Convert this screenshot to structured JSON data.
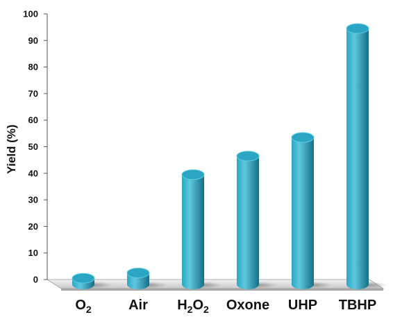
{
  "chart_data": {
    "type": "bar",
    "style": "3d-cylinder",
    "categories": [
      "O2",
      "Air",
      "H2O2",
      "Oxone",
      "UHP",
      "TBHP"
    ],
    "category_labels": [
      {
        "main": "O",
        "sub": "2",
        "tail": ""
      },
      {
        "main": "Air",
        "sub": "",
        "tail": ""
      },
      {
        "main": "H",
        "sub": "2",
        "tail": "O",
        "sub2": "2"
      },
      {
        "main": "Oxone",
        "sub": "",
        "tail": ""
      },
      {
        "main": "UHP",
        "sub": "",
        "tail": ""
      },
      {
        "main": "TBHP",
        "sub": "",
        "tail": ""
      }
    ],
    "values": [
      1,
      3,
      40,
      47,
      54,
      95
    ],
    "title": "",
    "xlabel": "",
    "ylabel": "Yield (%)",
    "ylim": [
      0,
      100
    ],
    "yticks": [
      0,
      10,
      20,
      30,
      40,
      50,
      60,
      70,
      80,
      90,
      100
    ],
    "grid": false,
    "legend": "none",
    "colors": {
      "bar_light": "#5fc8e0",
      "bar_mid": "#2aa6c4",
      "bar_dark": "#146f86",
      "floor": "#d0d0d0",
      "axis": "#333333"
    }
  }
}
